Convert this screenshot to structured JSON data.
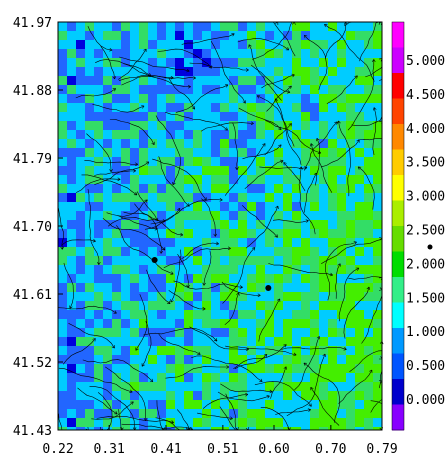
{
  "chart_data": {
    "type": "heatmap",
    "title": "",
    "xlabel": "",
    "ylabel": "",
    "xlim": [
      0.22,
      0.79
    ],
    "ylim": [
      41.43,
      41.97
    ],
    "x_ticks": [
      "0.22",
      "0.31",
      "0.41",
      "0.51",
      "0.60",
      "0.70",
      "0.79"
    ],
    "y_ticks": [
      "41.97",
      "41.88",
      "41.79",
      "41.70",
      "41.61",
      "41.52",
      "41.43"
    ],
    "colorbar": {
      "ticks": [
        "5.000",
        "4.500",
        "4.000",
        "3.500",
        "3.000",
        "2.500",
        "2.000",
        "1.500",
        "1.000",
        "0.500",
        "0.000"
      ],
      "colors": [
        "#ff00ff",
        "#cc00ff",
        "#ff0000",
        "#ff4400",
        "#ff8800",
        "#ffcc00",
        "#ffff00",
        "#aaee00",
        "#66dd00",
        "#00dd00",
        "#33ee88",
        "#00ffff",
        "#0099ff",
        "#0055ff",
        "#0000cc",
        "#8800ff"
      ]
    },
    "field_colors": {
      "low": "#0000dd",
      "mid_low": "#2266ff",
      "mid": "#00ccff",
      "mid_high": "#33dd66",
      "high": "#44ee00"
    },
    "markers": [
      {
        "x": 0.39,
        "y": 41.655
      },
      {
        "x": 0.59,
        "y": 41.618
      }
    ],
    "streamlines": true
  }
}
